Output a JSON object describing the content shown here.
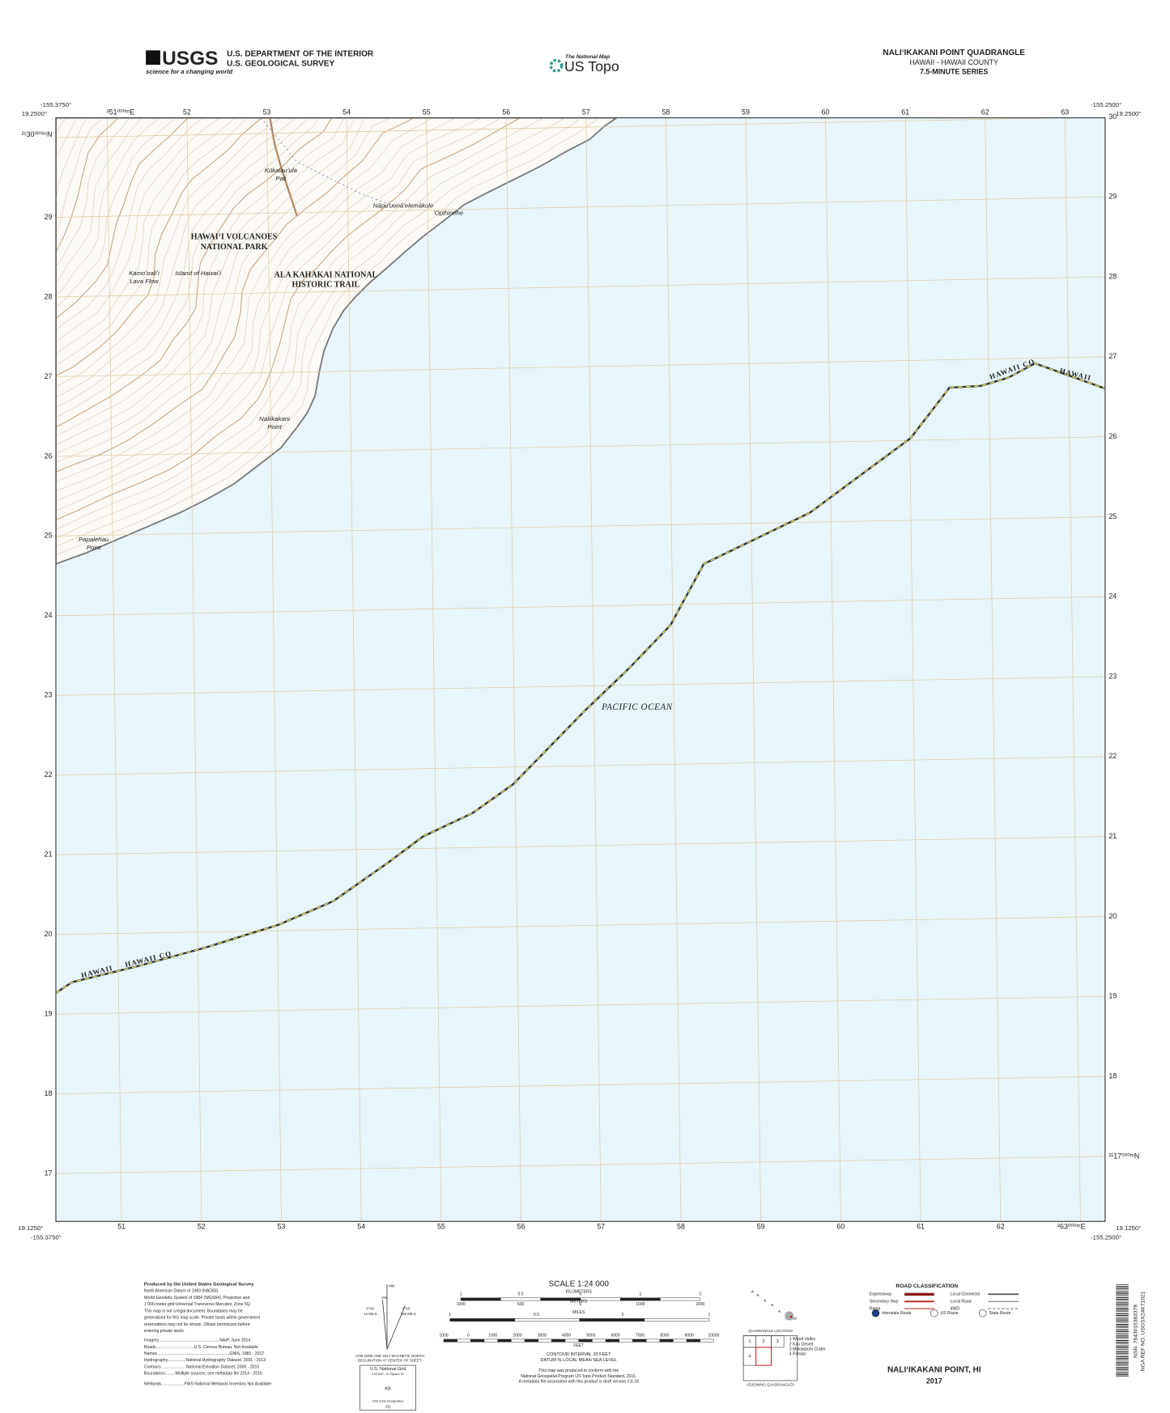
{
  "header": {
    "usgs_logo": "USGS",
    "usgs_tagline": "science for a changing world",
    "agency": "U.S. DEPARTMENT OF THE INTERIOR",
    "survey": "U.S. GEOLOGICAL SURVEY",
    "national_map": "The National Map",
    "us_topo": "US Topo",
    "quad_title": "NALIʻIKAKANI POINT QUADRANGLE",
    "state_county": "HAWAII - HAWAII COUNTY",
    "series": "7.5-MINUTE SERIES"
  },
  "corners": {
    "top_left_lon": "-155.3750°",
    "top_left_lat": "19.2500°",
    "top_right_lon": "-155.2500°",
    "top_right_lat": "19.2500°",
    "bottom_left_lat": "19.1250°",
    "bottom_left_lon": "-155.3750°",
    "bottom_right_lat": "19.1250°",
    "bottom_right_lon": "-155.2500°"
  },
  "grid": {
    "top": [
      "²51⁰⁰⁰ᵐE",
      "52",
      "53",
      "54",
      "55",
      "56",
      "57",
      "58",
      "59",
      "60",
      "61",
      "62",
      "63"
    ],
    "bottom": [
      "51",
      "52",
      "53",
      "54",
      "55",
      "56",
      "57",
      "58",
      "59",
      "60",
      "61",
      "62",
      "²63⁰⁰⁰ᵐE"
    ],
    "left": [
      "²¹30⁰⁰⁰ᵐN",
      "29",
      "28",
      "27",
      "26",
      "25",
      "24",
      "23",
      "22",
      "21",
      "20",
      "19",
      "18",
      "17"
    ],
    "right": [
      "30",
      "29",
      "28",
      "27",
      "26",
      "25",
      "24",
      "23",
      "22",
      "21",
      "20",
      "19",
      "18",
      "²¹17⁰⁰⁰ᵐN"
    ]
  },
  "places": [
    {
      "lines": [
        "Kūkalauʻula",
        "Pali"
      ]
    },
    {
      "lines": [
        "Nāpuʻuonāʻelemākule"
      ]
    },
    {
      "lines": [
        "ʻOpihinehe"
      ]
    },
    {
      "lines": [
        "HAWAIʻI VOLCANOES",
        "NATIONAL PARK"
      ]
    },
    {
      "lines": [
        "Kamoʻoaliʻi",
        "Lava Flow"
      ]
    },
    {
      "lines": [
        "Island of Hawaiʻi"
      ]
    },
    {
      "lines": [
        "ALA KAHAKAI NATIONAL",
        "HISTORIC TRAIL"
      ]
    },
    {
      "lines": [
        "Naliikakani",
        "Point"
      ]
    },
    {
      "lines": [
        "Papalehau",
        "Point"
      ]
    }
  ],
  "water": "PACIFIC OCEAN",
  "boundary_labels": [
    "HAWAII",
    "HAWAII CO",
    "HAWAII CO",
    "HAWAII"
  ],
  "footer": {
    "credits": [
      "Produced by the United States Geological Survey",
      "North American Datum of 1983 (NAD83)",
      "World Geodetic System of 1984 (WGS84). Projection and",
      "1 000-meter grid:Universal Transverse Mercator, Zone 5Q",
      "This map is not a legal document. Boundaries may be",
      "generalized for this map scale. Private lands within government",
      "reservations may not be shown. Obtain permission before",
      "entering private lands.",
      "Imagery.....................................................NAIP, June 2014",
      "Roads.................................U.S. Census Bureau, Not Available",
      "Names...............................................................GNIS, 1981 - 2017",
      "Hydrography................National Hydrography Dataset, 2001 - 2013",
      "Contours......................National Elevation Dataset, 2000 - 2015",
      "Boundaries.........Multiple sources; see metadata file 2014 - 2016",
      "Wetlands....................FWS National Wetlands Inventory Not Available"
    ],
    "declination": [
      "MN",
      "GN",
      "0°40'",
      "14 MILS",
      "9°20'",
      "166 MILS",
      "UTM GRID AND 2017 MAGNETIC NORTH",
      "DECLINATION AT CENTER OF SHEET"
    ],
    "usng": [
      "U.S. National Grid",
      "100,000 - m Square ID",
      "KB",
      "Grid Zone Designation",
      "5Q"
    ],
    "scale_title": "SCALE 1:24 000",
    "km_label": "KILOMETERS",
    "km_ticks": [
      "1",
      "0.5",
      "0",
      "1",
      "2"
    ],
    "m_label": "METERS",
    "m_ticks": [
      "1000",
      "500",
      "0",
      "1000",
      "2000"
    ],
    "mi_label": "MILES",
    "mi_ticks": [
      "1",
      "0.5",
      "0",
      "1"
    ],
    "ft_label": "FEET",
    "ft_ticks": [
      "1000",
      "0",
      "1000",
      "2000",
      "3000",
      "4000",
      "5000",
      "6000",
      "7000",
      "8000",
      "9000",
      "10000"
    ],
    "contour_note": [
      "CONTOUR INTERVAL 20 FEET",
      "DATUM IS LOCAL MEAN SEA LEVEL"
    ],
    "standard_note": [
      "This map was produced to conform with the",
      "National Geospatial Program US Topo Product Standard, 2011.",
      "A metadata file associated with this product is draft version 0.6.18"
    ],
    "quad_location": "QUADRANGLE LOCATION",
    "location_island": "Hawaii",
    "adjoining_title": "ADJOINING QUADRANGLES",
    "adjoining_cells": [
      "1",
      "2",
      "3",
      "4"
    ],
    "adjoining": [
      "1 Wood Valley",
      "2 Kau Desert",
      "3 Makaopuhi Crater",
      "4 Pahala"
    ],
    "road_title": "ROAD CLASSIFICATION",
    "roads_left": [
      "Expressway",
      "Secondary Hwy",
      "Ramp"
    ],
    "roads_right": [
      "Local Connector",
      "Local Road",
      "4WD"
    ],
    "shields": [
      "Interstate Route",
      "US Route",
      "State Route"
    ],
    "sheet_name": "NALIʻIKAKANI POINT, HI",
    "year": "2017",
    "barcode": [
      "NSN. 7643016383378",
      "NGA REF NO. USGSX24K71021"
    ]
  }
}
